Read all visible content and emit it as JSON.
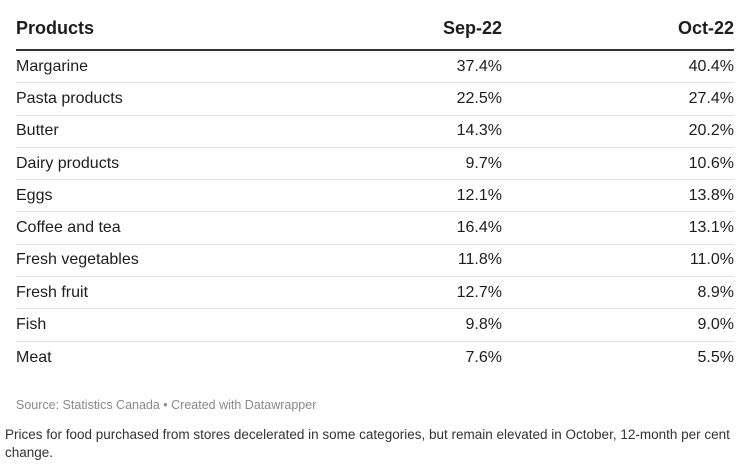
{
  "chart_data": {
    "type": "table",
    "columns": [
      "Products",
      "Sep-22",
      "Oct-22"
    ],
    "rows": [
      [
        "Margarine",
        "37.4%",
        "40.4%"
      ],
      [
        "Pasta products",
        "22.5%",
        "27.4%"
      ],
      [
        "Butter",
        "14.3%",
        "20.2%"
      ],
      [
        "Dairy products",
        "9.7%",
        "10.6%"
      ],
      [
        "Eggs",
        "12.1%",
        "13.8%"
      ],
      [
        "Coffee and tea",
        "16.4%",
        "13.1%"
      ],
      [
        "Fresh vegetables",
        "11.8%",
        "11.0%"
      ],
      [
        "Fresh fruit",
        "12.7%",
        "8.9%"
      ],
      [
        "Fish",
        "9.8%",
        "9.0%"
      ],
      [
        "Meat",
        "7.6%",
        "5.5%"
      ]
    ]
  },
  "source": "Source: Statistics Canada • Created with Datawrapper",
  "caption": "Prices for food purchased from stores decelerated in some categories, but remain elevated in October, 12-month per cent change."
}
